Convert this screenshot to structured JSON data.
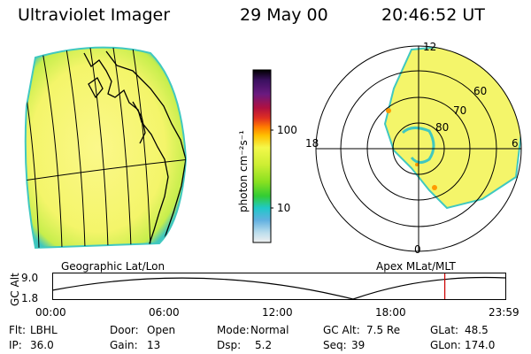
{
  "header": {
    "instrument": "Ultraviolet Imager",
    "date": "29 May 00",
    "time": "20:46:52 UT"
  },
  "left_panel": {
    "caption": "Geographic Lat/Lon"
  },
  "colorbar": {
    "unit_label": "photon cm⁻²s⁻¹",
    "tick_labels": [
      "100",
      "10"
    ],
    "colors": [
      "#000000",
      "#3b1060",
      "#6a1a80",
      "#b01040",
      "#e03020",
      "#ff7a00",
      "#ffc000",
      "#f4f84a",
      "#ccee33",
      "#88e020",
      "#33cc33",
      "#20c8c8",
      "#60b0e0",
      "#b8dcec",
      "#f0f0f0"
    ]
  },
  "right_panel": {
    "caption": "Apex MLat/MLT",
    "lat_labels": [
      "80",
      "70",
      "60"
    ],
    "mlt_labels": {
      "top": "12",
      "left": "18",
      "right": "6",
      "bottom": "0"
    }
  },
  "timeline": {
    "y_label": "GC Alt",
    "y_ticks": [
      "9.0",
      "1.8"
    ],
    "x_ticks": [
      "00:00",
      "06:00",
      "12:00",
      "18:00",
      "23:59"
    ],
    "current_marker_time": "20:46:52",
    "marker_color": "#cc0000"
  },
  "footer": {
    "row1": [
      {
        "label": "Flt:",
        "value": "LBHL"
      },
      {
        "label": "Door:",
        "value": "Open"
      },
      {
        "label": "Mode:",
        "value": "Normal"
      },
      {
        "label": "GC Alt:",
        "value": "7.5 Re"
      },
      {
        "label": "GLat:",
        "value": "48.5"
      }
    ],
    "row2": [
      {
        "label": "IP:",
        "value": "36.0"
      },
      {
        "label": "Gain:",
        "value": "13"
      },
      {
        "label": "Dsp:",
        "value": "5.2"
      },
      {
        "label": "Seq:",
        "value": "39"
      },
      {
        "label": "GLon:",
        "value": "174.0"
      }
    ]
  },
  "colors": {
    "aurora_yellow": "#f6f57a",
    "aurora_green": "#c8ee55",
    "aurora_edge": "#40c8c0"
  }
}
